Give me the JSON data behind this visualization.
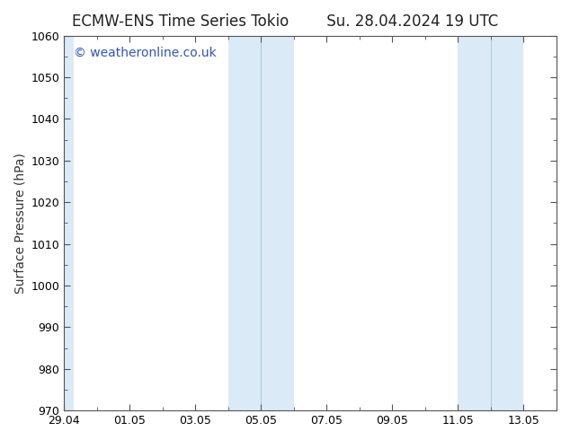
{
  "title_left": "ECMW-ENS Time Series Tokio",
  "title_right": "Su. 28.04.2024 19 UTC",
  "ylabel": "Surface Pressure (hPa)",
  "ylim": [
    970,
    1060
  ],
  "yticks": [
    970,
    980,
    990,
    1000,
    1010,
    1020,
    1030,
    1040,
    1050,
    1060
  ],
  "xtick_labels": [
    "29.04",
    "01.05",
    "03.05",
    "05.05",
    "07.05",
    "09.05",
    "11.05",
    "13.05"
  ],
  "xtick_positions": [
    0,
    2,
    4,
    6,
    8,
    10,
    12,
    14
  ],
  "xlim": [
    0,
    15
  ],
  "band_color": "#daeaf7",
  "band1_start": 5,
  "band1_end": 7,
  "band2_start": 12,
  "band2_end": 14,
  "left_band_start": -0.05,
  "left_band_end": 0.3,
  "divider_color": "#aaccdd",
  "background_color": "#ffffff",
  "plot_bg_color": "#ffffff",
  "border_color": "#555555",
  "watermark_text": "© weatheronline.co.uk",
  "watermark_color": "#3355bb",
  "watermark_fontsize": 10,
  "title_fontsize": 12,
  "axis_label_fontsize": 10,
  "tick_fontsize": 9
}
